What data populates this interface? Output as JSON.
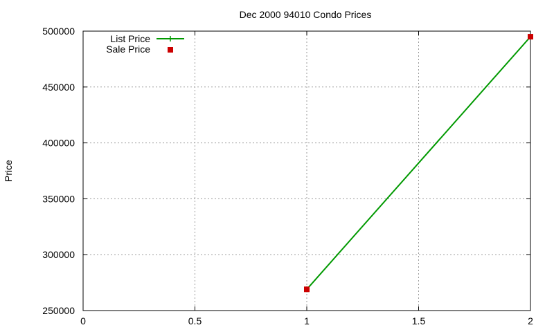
{
  "chart_data": {
    "type": "line",
    "title": "Dec 2000 94010 Condo Prices",
    "xlabel": "",
    "ylabel": "Price",
    "xlim": [
      0,
      2
    ],
    "ylim": [
      250000,
      500000
    ],
    "x_ticks": [
      0,
      0.5,
      1,
      1.5,
      2
    ],
    "x_tick_labels": [
      "0",
      "0.5",
      "1",
      "1.5",
      "2"
    ],
    "y_ticks": [
      250000,
      300000,
      350000,
      400000,
      450000,
      500000
    ],
    "y_tick_labels": [
      "250000",
      "300000",
      "350000",
      "400000",
      "450000",
      "500000"
    ],
    "grid": true,
    "legend_position": "top-left",
    "series": [
      {
        "name": "List Price",
        "style": "line-with-plus-markers",
        "color": "#009900",
        "x": [
          1,
          2
        ],
        "y": [
          269000,
          495000
        ]
      },
      {
        "name": "Sale Price",
        "style": "square-markers",
        "color": "#cc0000",
        "x": [
          1,
          2
        ],
        "y": [
          269000,
          495000
        ]
      }
    ]
  }
}
